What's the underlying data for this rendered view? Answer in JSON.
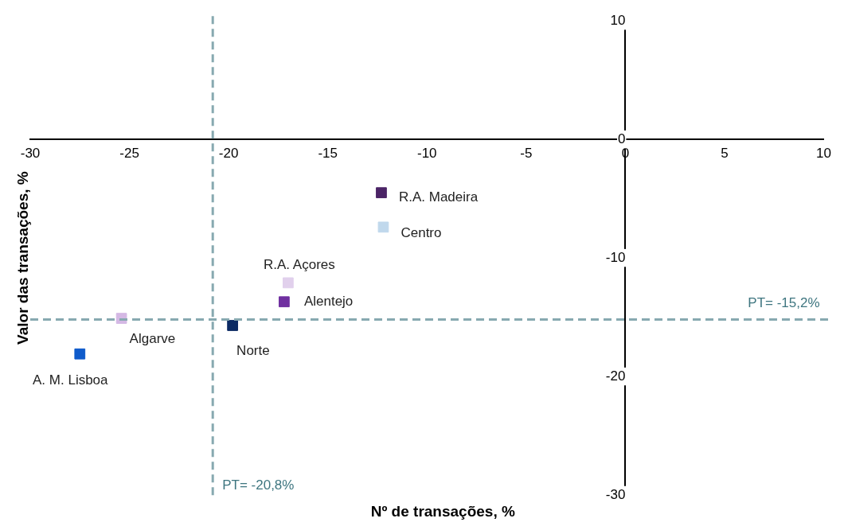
{
  "chart_data": {
    "type": "scatter",
    "xlabel": "Nº de transações, %",
    "ylabel": "Valor das transações, %",
    "xlim": [
      -30,
      10
    ],
    "xticks": [
      -30,
      -25,
      -20,
      -15,
      -10,
      -5,
      0,
      5,
      10
    ],
    "ylim": [
      -30,
      10
    ],
    "yticks": [
      -30,
      -20,
      -10,
      0,
      10
    ],
    "grid": false,
    "legend": false,
    "marker": "square",
    "series": [
      {
        "name": "R.A. Madeira",
        "color": "#4b2466",
        "x": [
          -12.3
        ],
        "values": [
          -4.5
        ]
      },
      {
        "name": "Centro",
        "color": "#c0d8ec",
        "x": [
          -12.2
        ],
        "values": [
          -7.4
        ]
      },
      {
        "name": "R.A. Açores",
        "color": "#e1d0ec",
        "x": [
          -17.0
        ],
        "values": [
          -12.1
        ]
      },
      {
        "name": "Alentejo",
        "color": "#7030a0",
        "x": [
          -17.2
        ],
        "values": [
          -13.7
        ]
      },
      {
        "name": "Algarve",
        "color": "#d4b8e4",
        "x": [
          -25.4
        ],
        "values": [
          -15.1
        ]
      },
      {
        "name": "Norte",
        "color": "#0b2a63",
        "x": [
          -19.8
        ],
        "values": [
          -15.7
        ]
      },
      {
        "name": "A. M. Lisboa",
        "color": "#0f5bcb",
        "x": [
          -27.5
        ],
        "values": [
          -18.1
        ]
      }
    ],
    "ref_lines": [
      {
        "axis": "x",
        "value": -20.8,
        "label": "PT= -20,8%",
        "color": "#87a9b0",
        "line_style": "dashed"
      },
      {
        "axis": "y",
        "value": -15.2,
        "label": "PT= -15,2%",
        "color": "#87a9b0",
        "line_style": "dashed"
      }
    ]
  }
}
